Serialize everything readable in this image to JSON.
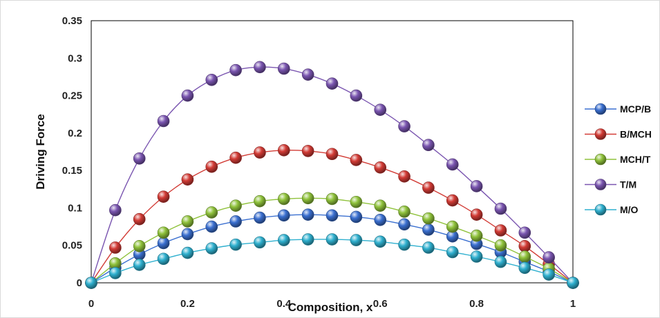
{
  "chart_data": {
    "type": "scatter",
    "xlabel": "Composition, x",
    "ylabel": "Driving Force",
    "xlim": [
      0,
      1
    ],
    "ylim": [
      0,
      0.35
    ],
    "x_ticks": [
      0,
      0.2,
      0.4,
      0.6,
      0.8,
      1
    ],
    "x_tick_labels": [
      "0",
      "0.2",
      "0.4",
      "0.6",
      "0.8",
      "1"
    ],
    "y_ticks": [
      0,
      0.05,
      0.1,
      0.15,
      0.2,
      0.25,
      0.3,
      0.35
    ],
    "y_tick_labels": [
      "0",
      "0.05",
      "0.1",
      "0.15",
      "0.2",
      "0.25",
      "0.3",
      "0.35"
    ],
    "grid": false,
    "legend_position": "right",
    "x": [
      0,
      0.05,
      0.1,
      0.15,
      0.2,
      0.25,
      0.3,
      0.35,
      0.4,
      0.45,
      0.5,
      0.55,
      0.6,
      0.65,
      0.7,
      0.75,
      0.8,
      0.85,
      0.9,
      0.95,
      1
    ],
    "series": [
      {
        "name": "MCP/B",
        "color": "#3a6fd0",
        "values": [
          0,
          0.02,
          0.038,
          0.053,
          0.065,
          0.075,
          0.082,
          0.087,
          0.09,
          0.091,
          0.09,
          0.088,
          0.084,
          0.078,
          0.071,
          0.062,
          0.052,
          0.041,
          0.028,
          0.015,
          0
        ]
      },
      {
        "name": "B/MCH",
        "color": "#d23b35",
        "values": [
          0,
          0.047,
          0.085,
          0.115,
          0.138,
          0.155,
          0.167,
          0.174,
          0.177,
          0.176,
          0.172,
          0.164,
          0.154,
          0.142,
          0.127,
          0.11,
          0.091,
          0.07,
          0.049,
          0.025,
          0
        ]
      },
      {
        "name": "MCH/T",
        "color": "#8fc23b",
        "values": [
          0,
          0.026,
          0.049,
          0.067,
          0.082,
          0.094,
          0.103,
          0.109,
          0.112,
          0.113,
          0.112,
          0.108,
          0.103,
          0.095,
          0.086,
          0.075,
          0.063,
          0.05,
          0.035,
          0.019,
          0
        ]
      },
      {
        "name": "T/M",
        "color": "#7a55b0",
        "values": [
          0,
          0.097,
          0.166,
          0.216,
          0.25,
          0.271,
          0.284,
          0.288,
          0.286,
          0.278,
          0.266,
          0.25,
          0.231,
          0.209,
          0.184,
          0.158,
          0.129,
          0.099,
          0.067,
          0.034,
          0
        ]
      },
      {
        "name": "M/O",
        "color": "#2fb0cf",
        "values": [
          0,
          0.013,
          0.024,
          0.032,
          0.04,
          0.046,
          0.051,
          0.054,
          0.057,
          0.058,
          0.058,
          0.057,
          0.055,
          0.051,
          0.047,
          0.041,
          0.035,
          0.028,
          0.02,
          0.011,
          0
        ]
      }
    ]
  }
}
